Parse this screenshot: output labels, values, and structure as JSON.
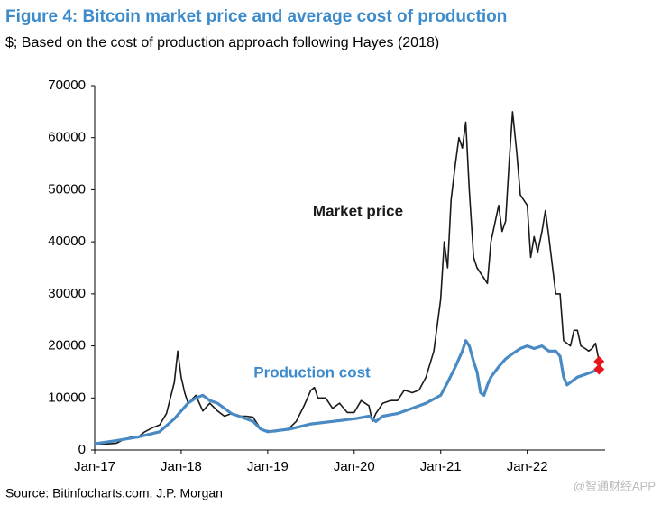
{
  "chart_data": {
    "type": "line",
    "title": "Figure 4: Bitcoin market price and average cost of production",
    "subtitle": "$; Based on the cost of production approach following Hayes (2018)",
    "source": "Source: Bitinfocharts.com, J.P. Morgan",
    "watermark": "@智通财经APP",
    "xlim": [
      2017,
      2022.9
    ],
    "xticks": [
      {
        "value": 2017,
        "label": "Jan-17"
      },
      {
        "value": 2018,
        "label": "Jan-18"
      },
      {
        "value": 2019,
        "label": "Jan-19"
      },
      {
        "value": 2020,
        "label": "Jan-20"
      },
      {
        "value": 2021,
        "label": "Jan-21"
      },
      {
        "value": 2022,
        "label": "Jan-22"
      }
    ],
    "ylim": [
      0,
      70000
    ],
    "yticks": [
      0,
      10000,
      20000,
      30000,
      40000,
      50000,
      60000,
      70000
    ],
    "grid": false,
    "end_marker_color": "#e8141c",
    "series": [
      {
        "name": "Market price",
        "color": "#1a1a1a",
        "label_color": "#1a1a1a",
        "x": [
          2017.0,
          2017.08,
          2017.17,
          2017.25,
          2017.33,
          2017.42,
          2017.5,
          2017.58,
          2017.67,
          2017.75,
          2017.83,
          2017.92,
          2017.96,
          2018.0,
          2018.04,
          2018.08,
          2018.17,
          2018.25,
          2018.33,
          2018.42,
          2018.5,
          2018.58,
          2018.67,
          2018.75,
          2018.83,
          2018.92,
          2019.0,
          2019.08,
          2019.17,
          2019.25,
          2019.33,
          2019.42,
          2019.5,
          2019.54,
          2019.58,
          2019.67,
          2019.75,
          2019.83,
          2019.92,
          2020.0,
          2020.08,
          2020.17,
          2020.21,
          2020.25,
          2020.33,
          2020.42,
          2020.5,
          2020.58,
          2020.67,
          2020.75,
          2020.83,
          2020.92,
          2021.0,
          2021.04,
          2021.08,
          2021.12,
          2021.17,
          2021.21,
          2021.25,
          2021.29,
          2021.33,
          2021.38,
          2021.42,
          2021.5,
          2021.54,
          2021.58,
          2021.67,
          2021.71,
          2021.75,
          2021.79,
          2021.83,
          2021.88,
          2021.92,
          2022.0,
          2022.04,
          2022.08,
          2022.12,
          2022.17,
          2022.21,
          2022.25,
          2022.33,
          2022.38,
          2022.42,
          2022.5,
          2022.54,
          2022.58,
          2022.62,
          2022.67,
          2022.71,
          2022.75,
          2022.79,
          2022.83
        ],
        "values": [
          1000,
          1100,
          1200,
          1300,
          2000,
          2500,
          2500,
          3500,
          4300,
          4800,
          7000,
          13000,
          19000,
          14000,
          11000,
          9000,
          10500,
          7500,
          9000,
          7500,
          6500,
          7000,
          6500,
          6500,
          6300,
          4000,
          3700,
          3500,
          3900,
          4200,
          5500,
          8500,
          11500,
          12000,
          10000,
          10000,
          8000,
          9000,
          7200,
          7200,
          9500,
          8500,
          5500,
          7000,
          9000,
          9500,
          9500,
          11500,
          11000,
          11500,
          14000,
          19000,
          29000,
          40000,
          35000,
          48000,
          55000,
          60000,
          58000,
          63000,
          50000,
          37000,
          35000,
          33000,
          32000,
          40000,
          47000,
          42000,
          44000,
          55000,
          65000,
          57000,
          49000,
          47000,
          37000,
          41000,
          38000,
          42000,
          46000,
          41000,
          30000,
          30000,
          21000,
          20000,
          23000,
          23000,
          20000,
          19500,
          19000,
          19500,
          20500,
          17000
        ]
      },
      {
        "name": "Production cost",
        "color": "#4a8ac4",
        "label_color": "#3d8bcb",
        "x": [
          2017.0,
          2017.25,
          2017.5,
          2017.75,
          2017.92,
          2018.0,
          2018.08,
          2018.17,
          2018.25,
          2018.33,
          2018.42,
          2018.5,
          2018.58,
          2018.67,
          2018.75,
          2018.83,
          2018.92,
          2019.0,
          2019.25,
          2019.5,
          2019.75,
          2020.0,
          2020.17,
          2020.25,
          2020.33,
          2020.5,
          2020.67,
          2020.83,
          2021.0,
          2021.08,
          2021.17,
          2021.25,
          2021.29,
          2021.33,
          2021.38,
          2021.42,
          2021.46,
          2021.5,
          2021.54,
          2021.58,
          2021.67,
          2021.75,
          2021.83,
          2021.92,
          2022.0,
          2022.08,
          2022.17,
          2022.25,
          2022.33,
          2022.38,
          2022.42,
          2022.46,
          2022.5,
          2022.58,
          2022.67,
          2022.75,
          2022.83
        ],
        "values": [
          1200,
          1800,
          2500,
          3500,
          6000,
          7500,
          9000,
          10000,
          10500,
          9500,
          9000,
          8000,
          7000,
          6500,
          6000,
          5500,
          4000,
          3500,
          4000,
          5000,
          5500,
          6000,
          6500,
          5500,
          6500,
          7000,
          8000,
          9000,
          10500,
          13000,
          16000,
          19000,
          21000,
          20000,
          17000,
          15000,
          11000,
          10500,
          12500,
          14000,
          16000,
          17500,
          18500,
          19500,
          20000,
          19500,
          20000,
          19000,
          19000,
          18000,
          14000,
          12500,
          13000,
          14000,
          14500,
          15000,
          15500
        ]
      }
    ]
  }
}
